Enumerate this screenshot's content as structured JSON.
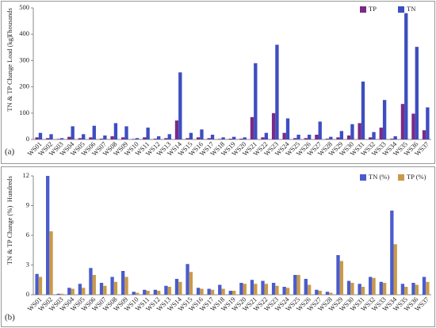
{
  "chart_data": [
    {
      "type": "bar",
      "panel_label": "(a)",
      "unit_label": "Thousands",
      "y_label": "TN & TP Change Load (kg)",
      "categories": [
        "WS01",
        "WS02",
        "WS03",
        "WS04",
        "WS05",
        "WS06",
        "WS07",
        "WS08",
        "WS09",
        "WS10",
        "WS11",
        "WS12",
        "WS13",
        "WS14",
        "WS15",
        "WS16",
        "WS17",
        "WS18",
        "WS19",
        "WS20",
        "WS21",
        "WS22",
        "WS23",
        "WS24",
        "WS25",
        "WS26",
        "WS27",
        "WS28",
        "WS29",
        "WS30",
        "WS31",
        "WS32",
        "WS33",
        "WS34",
        "WS35",
        "WS36",
        "WS37"
      ],
      "series": [
        {
          "name": "TP",
          "color": "#7b2a86",
          "values": [
            8,
            5,
            2,
            10,
            5,
            8,
            3,
            12,
            8,
            2,
            8,
            3,
            5,
            72,
            5,
            8,
            5,
            2,
            3,
            3,
            85,
            8,
            100,
            25,
            5,
            5,
            18,
            3,
            8,
            15,
            62,
            8,
            45,
            3,
            135,
            98,
            35
          ]
        },
        {
          "name": "TN",
          "color": "#3d4ec0",
          "values": [
            25,
            20,
            5,
            50,
            20,
            52,
            15,
            62,
            50,
            5,
            45,
            12,
            20,
            255,
            25,
            38,
            18,
            8,
            10,
            8,
            290,
            25,
            360,
            80,
            18,
            18,
            68,
            10,
            32,
            58,
            220,
            28,
            150,
            12,
            480,
            352,
            122
          ]
        }
      ],
      "ylim": [
        0,
        500
      ],
      "yticks": [
        0,
        100,
        200,
        300,
        400,
        500
      ],
      "grid": false,
      "legend": "top-right"
    },
    {
      "type": "bar",
      "panel_label": "(b)",
      "unit_label": "Hundreds",
      "y_label": "TN & TP Change (%)",
      "categories": [
        "WS01",
        "WS02",
        "WS03",
        "WS04",
        "WS05",
        "WS06",
        "WS07",
        "WS08",
        "WS09",
        "WS10",
        "WS11",
        "WS12",
        "WS13",
        "WS14",
        "WS15",
        "WS16",
        "WS17",
        "WS18",
        "WS19",
        "WS20",
        "WS21",
        "WS22",
        "WS23",
        "WS24",
        "WS25",
        "WS26",
        "WS27",
        "WS28",
        "WS29",
        "WS30",
        "WS31",
        "WS32",
        "WS33",
        "WS34",
        "WS35",
        "WS36",
        "WS37"
      ],
      "series": [
        {
          "name": "TN (%)",
          "color": "#4a5ccc",
          "values": [
            2.1,
            12,
            0.1,
            0.7,
            1.1,
            2.7,
            1.2,
            1.8,
            2.4,
            0.3,
            0.5,
            0.5,
            0.9,
            1.6,
            3.1,
            0.7,
            0.6,
            1.0,
            0.4,
            1.2,
            1.5,
            1.4,
            1.2,
            0.8,
            2.0,
            1.6,
            0.5,
            0.3,
            4.0,
            1.4,
            1.1,
            1.8,
            1.3,
            8.5,
            1.1,
            1.2,
            1.8
          ]
        },
        {
          "name": "TP (%)",
          "color": "#c99a4a",
          "values": [
            1.8,
            6.4,
            0.1,
            0.6,
            0.7,
            2.0,
            0.9,
            1.3,
            1.8,
            0.2,
            0.4,
            0.4,
            0.8,
            1.3,
            2.3,
            0.6,
            0.5,
            0.6,
            0.4,
            1.1,
            1.1,
            1.1,
            0.9,
            0.7,
            2.0,
            1.0,
            0.4,
            0.2,
            3.4,
            1.2,
            0.8,
            1.7,
            1.2,
            5.1,
            0.8,
            1.0,
            1.3
          ]
        }
      ],
      "ylim": [
        0,
        12
      ],
      "yticks": [
        0,
        3,
        6,
        9,
        12
      ],
      "grid": false,
      "legend": "top-right"
    }
  ]
}
